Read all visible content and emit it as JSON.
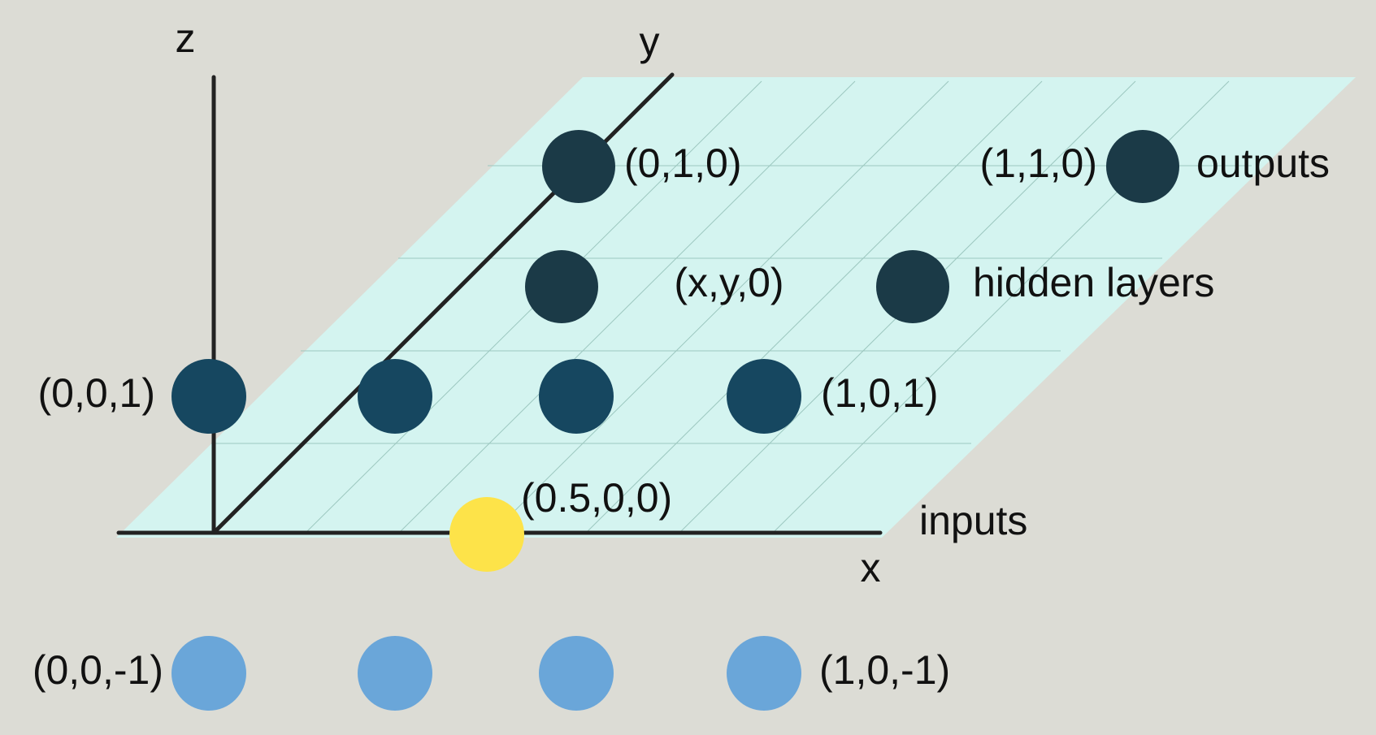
{
  "axes": {
    "x_label": "x",
    "y_label": "y",
    "z_label": "z"
  },
  "nodes": {
    "output_left": {
      "label": "(0,1,0)"
    },
    "output_right": {
      "label": "(1,1,0)"
    },
    "hidden_left": {
      "label": ""
    },
    "hidden_right": {
      "label": ""
    },
    "hidden_center_label": "(x,y,0)",
    "upper_row": {
      "left_label": "(0,0,1)",
      "right_label": "(1,0,1)"
    },
    "input": {
      "label": "(0.5,0,0)"
    },
    "lower_row": {
      "left_label": "(0,0,-1)",
      "right_label": "(1,0,-1)"
    }
  },
  "layers": {
    "outputs": "outputs",
    "hidden": "hidden layers",
    "inputs": "inputs"
  },
  "colors": {
    "background": "#dcdcd5",
    "plane": "#d4f4f0",
    "dark_node": "#1b3a47",
    "upper_node": "#164760",
    "input_node": "#fde349",
    "lower_node": "#6aa6d9",
    "axis": "#222222"
  }
}
